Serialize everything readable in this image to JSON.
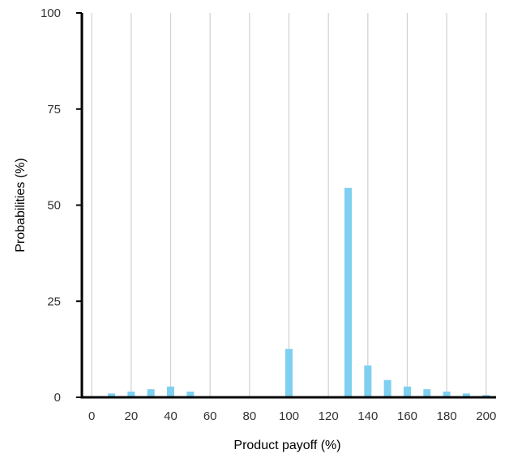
{
  "chart_data": {
    "type": "bar",
    "title": "",
    "xlabel": "Product payoff (%)",
    "ylabel": "Probabilities (%)",
    "xlim": [
      -5,
      205
    ],
    "ylim": [
      0,
      100
    ],
    "x_ticks": [
      0,
      20,
      40,
      60,
      80,
      100,
      120,
      140,
      160,
      180,
      200
    ],
    "y_ticks": [
      0,
      25,
      50,
      75,
      100
    ],
    "grid": "vertical",
    "bar_color": "#7fd0f0",
    "x": [
      10,
      20,
      30,
      40,
      50,
      100,
      130,
      140,
      150,
      160,
      170,
      180,
      190,
      200
    ],
    "values": [
      1.0,
      1.5,
      2.1,
      2.8,
      1.5,
      12.6,
      54.5,
      8.3,
      4.5,
      2.8,
      2.1,
      1.5,
      1.0,
      0.6
    ]
  }
}
